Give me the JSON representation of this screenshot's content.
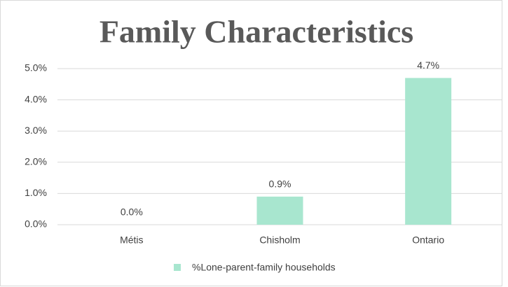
{
  "chart_data": {
    "type": "bar",
    "title": "Family Characteristics",
    "categories": [
      "Métis",
      "Chisholm",
      "Ontario"
    ],
    "series": [
      {
        "name": "%Lone-parent-family households",
        "color": "#a8e6cf",
        "values": [
          0,
          0.9,
          4.7
        ],
        "value_labels": [
          "0.0%",
          "0.9%",
          "4.7%"
        ]
      }
    ],
    "ylim": [
      0,
      5
    ],
    "yticks": [
      {
        "value": 0,
        "label": "0.0%"
      },
      {
        "value": 1,
        "label": "1.0%"
      },
      {
        "value": 2,
        "label": "2.0%"
      },
      {
        "value": 3,
        "label": "3.0%"
      },
      {
        "value": 4,
        "label": "4.0%"
      },
      {
        "value": 5,
        "label": "5.0%"
      }
    ],
    "grid": true,
    "legend": "bottom"
  }
}
